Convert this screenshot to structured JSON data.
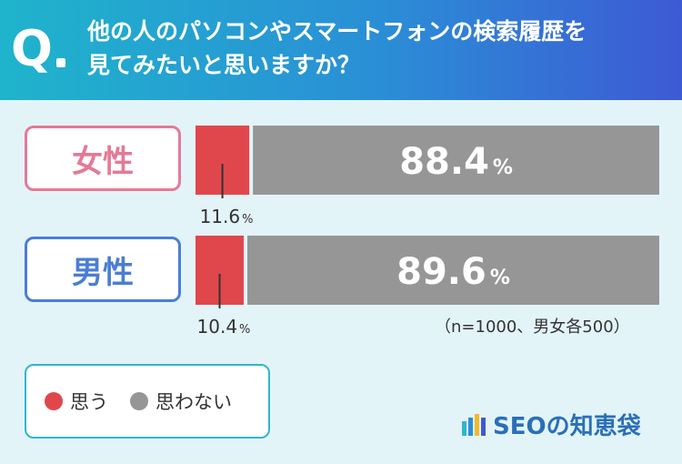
{
  "question": {
    "mark": "Q",
    "line1": "他の人のパソコンやスマートフォンの検索履歴を",
    "line2": "見てみたいと思いますか？"
  },
  "note": "（n=1000、男女各500）",
  "legend": {
    "yes": "思う",
    "no": "思わない"
  },
  "logo": {
    "text": "SEOの知恵袋"
  },
  "colors": {
    "yes": "#e0474c",
    "no": "#969696",
    "female": "#e47a96",
    "male": "#4a7ed3",
    "accent": "#2db7cc"
  },
  "chart_data": {
    "type": "bar",
    "orientation": "horizontal",
    "stacked": true,
    "percent": true,
    "categories": [
      "女性",
      "男性"
    ],
    "series": [
      {
        "name": "思う",
        "values": [
          11.6,
          10.4
        ]
      },
      {
        "name": "思わない",
        "values": [
          88.4,
          89.6
        ]
      }
    ],
    "labels": {
      "yes": [
        "11.6",
        "10.4"
      ],
      "no": [
        "88.4",
        "89.6"
      ],
      "unit": "%"
    },
    "xlim": [
      0,
      100
    ]
  }
}
